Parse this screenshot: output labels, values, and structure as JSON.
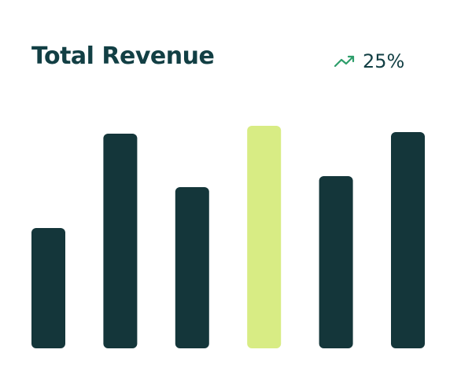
{
  "chart_data": {
    "type": "bar",
    "title": "Total Revenue",
    "annotation": "25%",
    "categories": [
      null,
      null,
      null,
      null,
      null,
      null
    ],
    "values": [
      153,
      273,
      205,
      283,
      219,
      275
    ],
    "colors": [
      "#14363a",
      "#14363a",
      "#14363a",
      "#d8ec84",
      "#14363a",
      "#14363a"
    ],
    "ylim": [
      0,
      283
    ],
    "grid": false
  }
}
